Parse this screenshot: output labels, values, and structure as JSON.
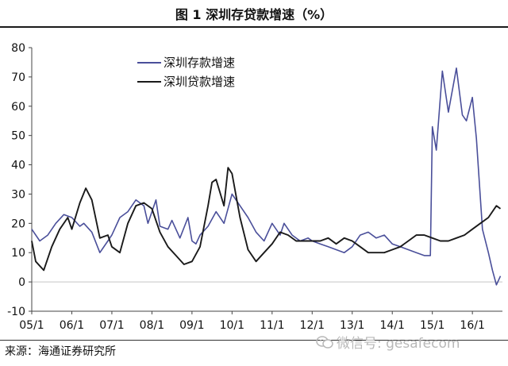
{
  "header": {
    "title": "图 1   深圳存贷款增速（%）"
  },
  "footer": {
    "source": "来源：海通证券研究所",
    "watermark": "微信号: gesafecom"
  },
  "colors": {
    "deposit": "#4a4f9a",
    "loan": "#1a1a1a",
    "axis": "#444444"
  },
  "chart_data": {
    "type": "line",
    "title": "",
    "xlabel": "",
    "ylabel": "",
    "ylim": [
      -10,
      80
    ],
    "yticks": [
      -10,
      0,
      10,
      20,
      30,
      40,
      50,
      60,
      70,
      80
    ],
    "xlim": [
      2005.0,
      2016.75
    ],
    "xticks": [
      "05/1",
      "06/1",
      "07/1",
      "08/1",
      "09/1",
      "10/1",
      "11/1",
      "12/1",
      "13/1",
      "14/1",
      "15/1",
      "16/1"
    ],
    "legend_position": "top-left",
    "grid": false,
    "series": [
      {
        "name": "深圳存款增速",
        "x": [
          2005.0,
          2005.2,
          2005.4,
          2005.6,
          2005.8,
          2006.0,
          2006.2,
          2006.3,
          2006.5,
          2006.7,
          2006.9,
          2007.0,
          2007.2,
          2007.4,
          2007.6,
          2007.8,
          2007.9,
          2008.1,
          2008.2,
          2008.4,
          2008.5,
          2008.7,
          2008.9,
          2009.0,
          2009.1,
          2009.2,
          2009.4,
          2009.6,
          2009.8,
          2010.0,
          2010.2,
          2010.4,
          2010.6,
          2010.8,
          2011.0,
          2011.2,
          2011.3,
          2011.5,
          2011.7,
          2011.9,
          2012.0,
          2012.2,
          2012.4,
          2012.6,
          2012.8,
          2013.0,
          2013.2,
          2013.4,
          2013.6,
          2013.8,
          2014.0,
          2014.2,
          2014.4,
          2014.6,
          2014.8,
          2014.95,
          2015.0,
          2015.1,
          2015.25,
          2015.4,
          2015.6,
          2015.75,
          2015.85,
          2016.0,
          2016.1,
          2016.25,
          2016.4,
          2016.5,
          2016.6,
          2016.7
        ],
        "values": [
          18,
          14,
          16,
          20,
          23,
          22,
          19,
          20,
          17,
          10,
          14,
          16,
          22,
          24,
          28,
          26,
          20,
          28,
          19,
          18,
          21,
          15,
          22,
          14,
          13,
          16,
          19,
          24,
          20,
          30,
          26,
          22,
          17,
          14,
          20,
          16,
          20,
          16,
          14,
          15,
          14,
          13,
          12,
          11,
          10,
          12,
          16,
          17,
          15,
          16,
          13,
          12,
          11,
          10,
          9,
          9,
          53,
          45,
          72,
          58,
          73,
          57,
          55,
          63,
          49,
          18,
          10,
          4,
          -1,
          2
        ]
      },
      {
        "name": "深圳贷款增速",
        "x": [
          2005.0,
          2005.1,
          2005.3,
          2005.5,
          2005.7,
          2005.9,
          2006.0,
          2006.2,
          2006.35,
          2006.5,
          2006.7,
          2006.9,
          2007.0,
          2007.2,
          2007.4,
          2007.6,
          2007.8,
          2008.0,
          2008.2,
          2008.4,
          2008.6,
          2008.8,
          2009.0,
          2009.2,
          2009.4,
          2009.5,
          2009.6,
          2009.8,
          2009.9,
          2010.0,
          2010.2,
          2010.4,
          2010.6,
          2010.8,
          2011.0,
          2011.2,
          2011.4,
          2011.6,
          2011.8,
          2012.0,
          2012.2,
          2012.4,
          2012.6,
          2012.8,
          2013.0,
          2013.2,
          2013.4,
          2013.6,
          2013.8,
          2014.0,
          2014.2,
          2014.4,
          2014.6,
          2014.8,
          2015.0,
          2015.2,
          2015.4,
          2015.6,
          2015.8,
          2016.0,
          2016.2,
          2016.4,
          2016.6,
          2016.7
        ],
        "values": [
          14,
          7,
          4,
          12,
          18,
          22,
          18,
          27,
          32,
          28,
          15,
          16,
          12,
          10,
          20,
          26,
          27,
          25,
          17,
          12,
          9,
          6,
          7,
          12,
          26,
          34,
          35,
          26,
          39,
          37,
          22,
          11,
          7,
          10,
          13,
          17,
          16,
          14,
          14,
          14,
          14,
          15,
          13,
          15,
          14,
          12,
          10,
          10,
          10,
          11,
          12,
          14,
          16,
          16,
          15,
          14,
          14,
          15,
          16,
          18,
          20,
          22,
          26,
          25
        ]
      }
    ]
  }
}
